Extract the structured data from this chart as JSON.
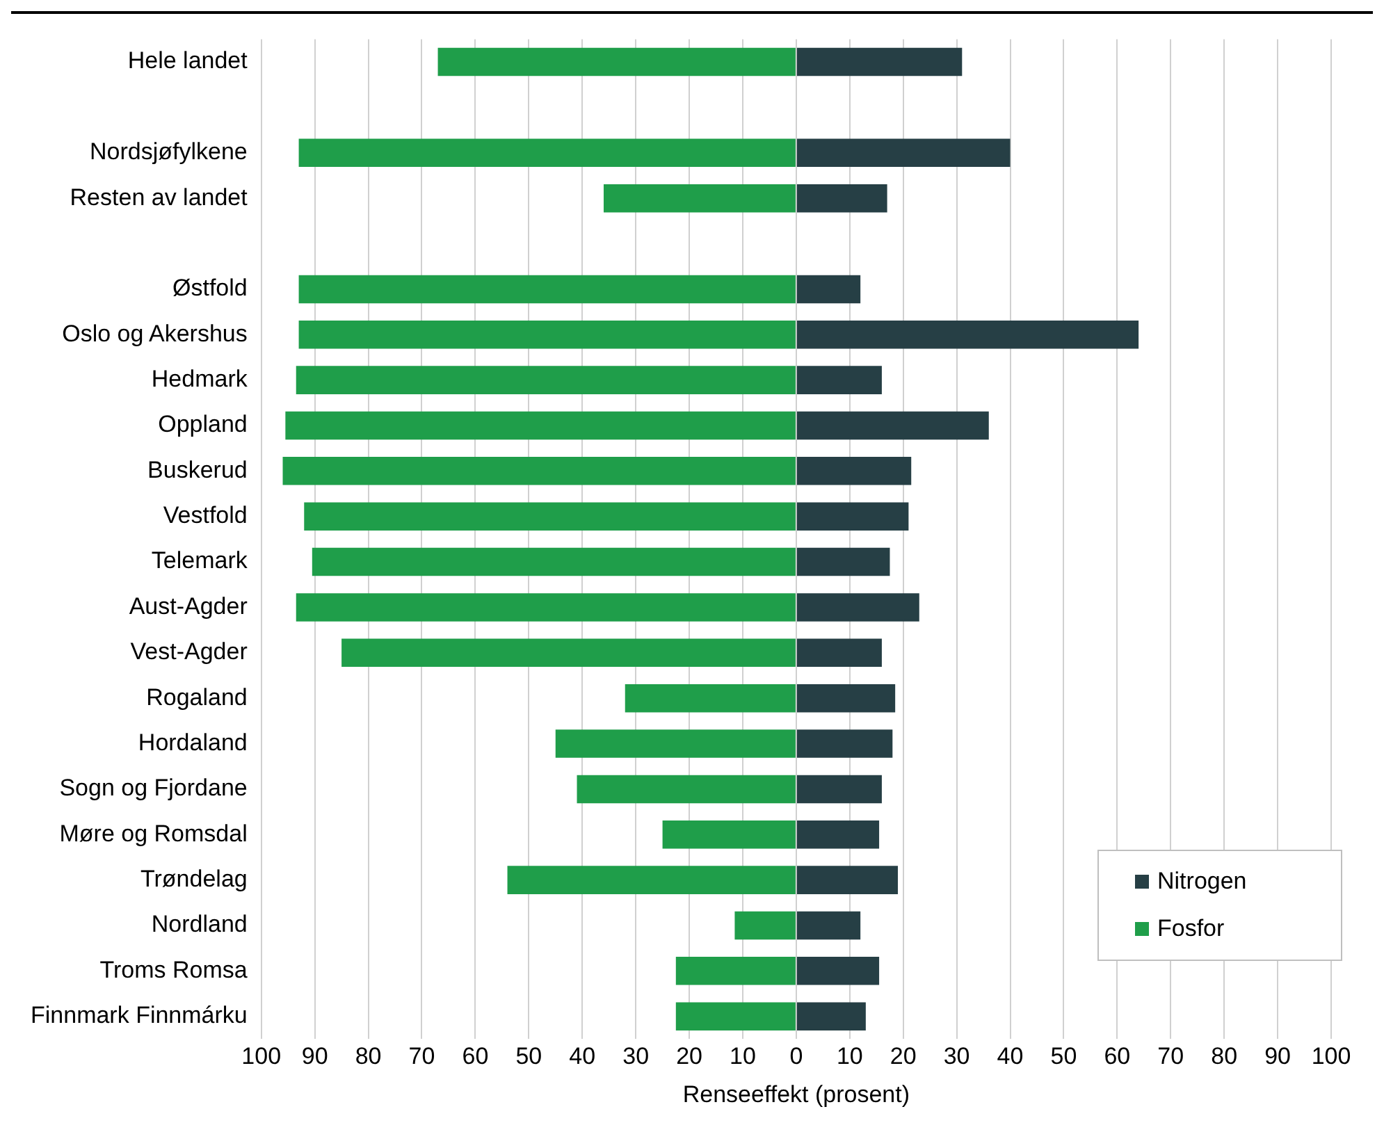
{
  "chart_data": {
    "type": "bar",
    "orientation": "horizontal",
    "stacked": true,
    "xlabel": "Renseeffekt (prosent)",
    "categories": [
      "Hele landet",
      null,
      "Nordsjøfylkene",
      "Resten av landet",
      null,
      "Østfold",
      "Oslo og Akershus",
      "Hedmark",
      "Oppland",
      "Buskerud",
      "Vestfold",
      "Telemark",
      "Aust-Agder",
      "Vest-Agder",
      "Rogaland",
      "Hordaland",
      "Sogn og Fjordane",
      "Møre og Romsdal",
      "Trøndelag",
      "Nordland",
      "Troms Romsa",
      "Finnmark Finnmárku"
    ],
    "series": [
      {
        "name": "Nitrogen",
        "color": "#263f45",
        "values": [
          31,
          null,
          40,
          17,
          null,
          12,
          64,
          16,
          36,
          21.5,
          21,
          17.5,
          23,
          16,
          18.5,
          18,
          16,
          15.5,
          19,
          12,
          15.5,
          13
        ]
      },
      {
        "name": "Fosfor",
        "color": "#1f9e4a",
        "values": [
          -67,
          null,
          -93,
          -36,
          null,
          -93,
          -93,
          -93.5,
          -95.5,
          -96,
          -92,
          -90.5,
          -93.5,
          -85,
          -32,
          -45,
          -41,
          -25,
          -54,
          -11.5,
          -22.5,
          -22.5
        ]
      }
    ],
    "xlim": [
      -100,
      100
    ],
    "xticks": [
      {
        "value": -100,
        "label": "100"
      },
      {
        "value": -90,
        "label": "90"
      },
      {
        "value": -80,
        "label": "80"
      },
      {
        "value": -70,
        "label": "70"
      },
      {
        "value": -60,
        "label": "60"
      },
      {
        "value": -50,
        "label": "50"
      },
      {
        "value": -40,
        "label": "40"
      },
      {
        "value": -30,
        "label": "30"
      },
      {
        "value": -20,
        "label": "20"
      },
      {
        "value": -10,
        "label": "10"
      },
      0,
      10,
      20,
      30,
      40,
      50,
      60,
      70,
      80,
      90,
      100
    ],
    "grid": "x",
    "legend": "bottom right"
  }
}
